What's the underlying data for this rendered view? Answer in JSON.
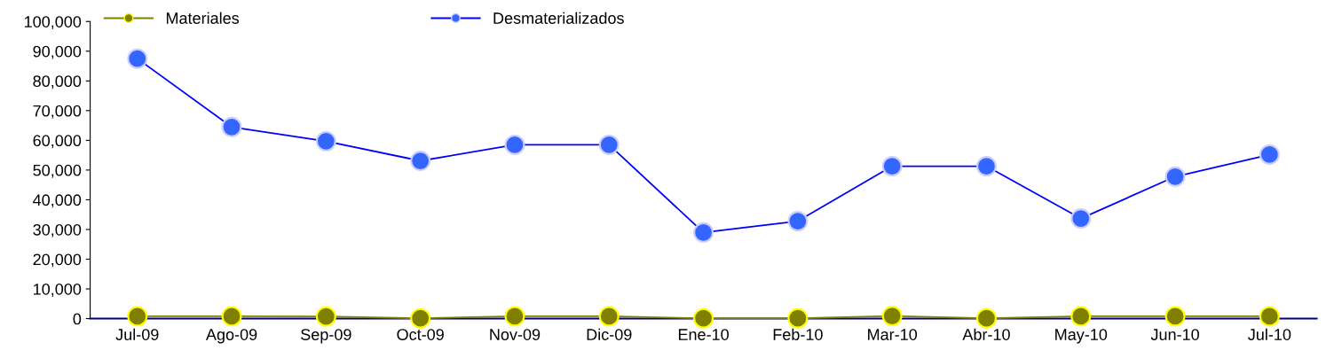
{
  "chart_data": {
    "type": "line",
    "categories": [
      "Jul-09",
      "Ago-09",
      "Sep-09",
      "Oct-09",
      "Nov-09",
      "Dic-09",
      "Ene-10",
      "Feb-10",
      "Mar-10",
      "Abr-10",
      "May-10",
      "Jun-10",
      "Jul-10"
    ],
    "series": [
      {
        "name": "Materiales",
        "color": "#808000",
        "values": [
          800,
          800,
          700,
          100,
          800,
          800,
          100,
          100,
          900,
          100,
          800,
          800,
          800
        ]
      },
      {
        "name": "Desmaterializados",
        "color": "#0000ff",
        "values": [
          87500,
          64500,
          59700,
          53100,
          58500,
          58500,
          29000,
          32800,
          51300,
          51300,
          33700,
          47800,
          55200
        ]
      }
    ],
    "ylim": [
      0,
      100000
    ],
    "yticks": [
      {
        "value": 0,
        "label": "0"
      },
      {
        "value": 10000,
        "label": "10,000"
      },
      {
        "value": 20000,
        "label": "20,000"
      },
      {
        "value": 30000,
        "label": "30,000"
      },
      {
        "value": 40000,
        "label": "40,000"
      },
      {
        "value": 50000,
        "label": "50,000"
      },
      {
        "value": 60000,
        "label": "60,000"
      },
      {
        "value": 70000,
        "label": "70,000"
      },
      {
        "value": 80000,
        "label": "80,000"
      },
      {
        "value": 90000,
        "label": "90,000"
      },
      {
        "value": 100000,
        "label": "100,000"
      }
    ],
    "grid": false,
    "legend": "top left",
    "marker": "circle",
    "line_style": "solid"
  }
}
